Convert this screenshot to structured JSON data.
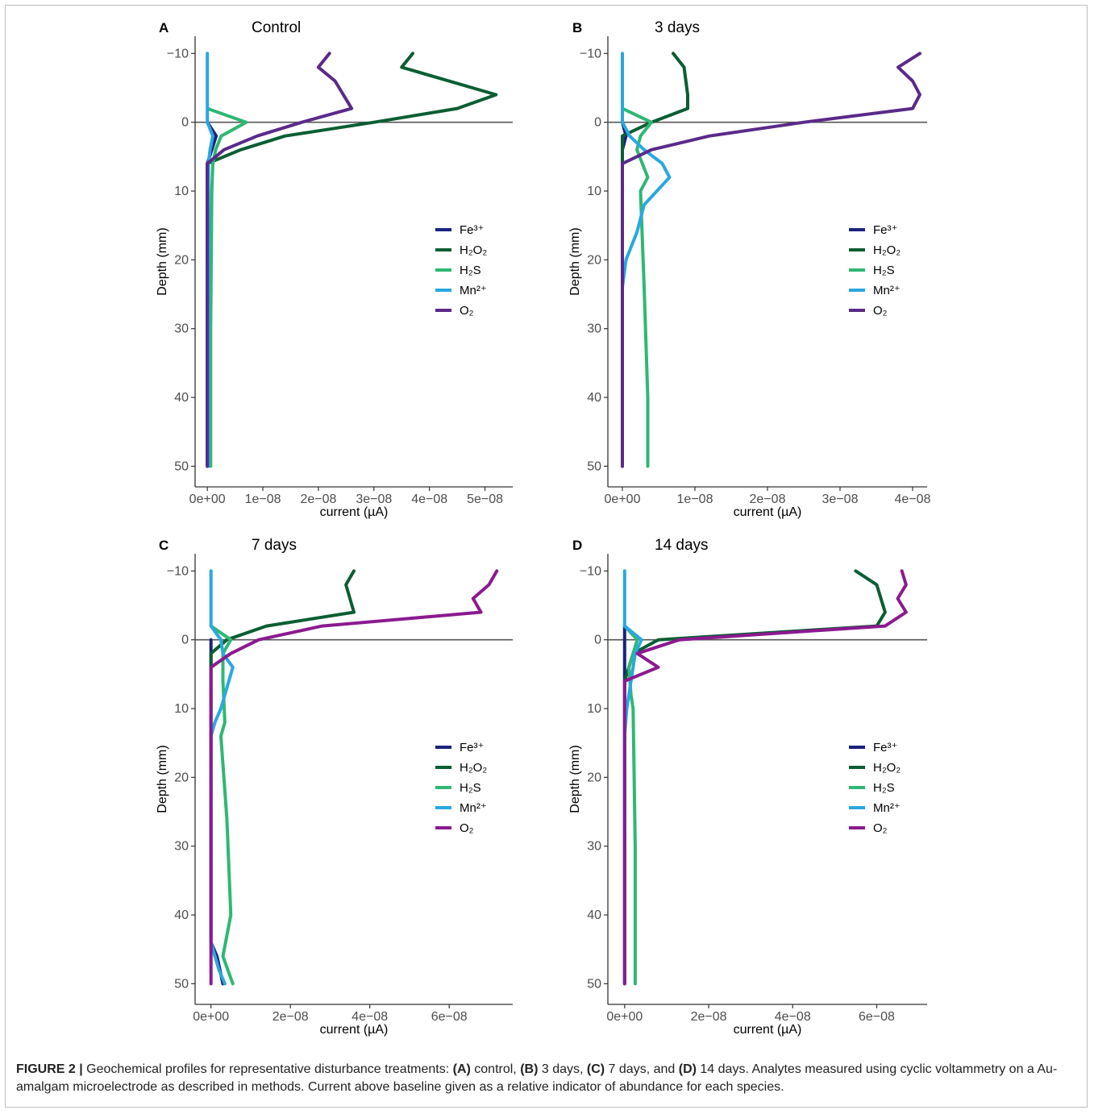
{
  "chart_data": [
    {
      "type": "line",
      "panel": "A",
      "title": "Control",
      "xlabel": "current (µA)",
      "ylabel": "Depth (mm)",
      "xlim": [
        -2.2e-09,
        5.5e-08
      ],
      "ylim": [
        -12.5,
        53
      ],
      "y_reversed": true,
      "xticks": [
        0,
        1e-08,
        2e-08,
        3e-08,
        4e-08,
        5e-08
      ],
      "xtick_labels": [
        "0e+00",
        "1e−08",
        "2e−08",
        "3e−08",
        "4e−08",
        "5e−08"
      ],
      "yticks": [
        -10,
        0,
        10,
        20,
        30,
        40,
        50
      ],
      "ytick_labels": [
        "−10",
        "0",
        "10",
        "20",
        "30",
        "40",
        "50"
      ],
      "reference_line": 0,
      "legend": "right",
      "series": [
        {
          "name": "Fe³⁺",
          "color": "#1a237e",
          "points": [
            [
              0,
              0
            ],
            [
              1.6e-09,
              2
            ],
            [
              0,
              6
            ],
            [
              0,
              50
            ]
          ]
        },
        {
          "name": "H₂O₂",
          "color": "#0b5e33",
          "points": [
            [
              3.7e-08,
              -10
            ],
            [
              3.5e-08,
              -8
            ],
            [
              5.2e-08,
              -4
            ],
            [
              4.5e-08,
              -2
            ],
            [
              3e-08,
              0
            ],
            [
              1.4e-08,
              2
            ],
            [
              6e-09,
              4
            ],
            [
              0,
              6
            ],
            [
              0,
              50
            ]
          ]
        },
        {
          "name": "H₂S",
          "color": "#2eb873",
          "points": [
            [
              0,
              -2
            ],
            [
              7e-09,
              0
            ],
            [
              2.5e-09,
              2
            ],
            [
              1.5e-09,
              4
            ],
            [
              1e-09,
              6
            ],
            [
              8e-10,
              10
            ],
            [
              6e-10,
              30
            ],
            [
              6e-10,
              50
            ]
          ]
        },
        {
          "name": "Mn²⁺",
          "color": "#29a8e0",
          "points": [
            [
              0,
              -10
            ],
            [
              0,
              -2
            ],
            [
              0,
              0
            ],
            [
              1e-09,
              2
            ],
            [
              5e-10,
              4
            ],
            [
              2e-10,
              6
            ],
            [
              2e-10,
              50
            ]
          ]
        },
        {
          "name": "O₂",
          "color": "#5a2a8a",
          "points": [
            [
              2.2e-08,
              -10
            ],
            [
              2e-08,
              -8
            ],
            [
              2.3e-08,
              -6
            ],
            [
              2.6e-08,
              -2
            ],
            [
              1.7e-08,
              0
            ],
            [
              9e-09,
              2
            ],
            [
              3e-09,
              4
            ],
            [
              0,
              6
            ],
            [
              0,
              50
            ]
          ]
        }
      ]
    },
    {
      "type": "line",
      "panel": "B",
      "title": "3 days",
      "xlabel": "current (µA)",
      "ylabel": "Depth (mm)",
      "xlim": [
        -2e-09,
        4.2e-08
      ],
      "ylim": [
        -12.5,
        53
      ],
      "y_reversed": true,
      "xticks": [
        0,
        1e-08,
        2e-08,
        3e-08,
        4e-08
      ],
      "xtick_labels": [
        "0e+00",
        "1e−08",
        "2e−08",
        "3e−08",
        "4e−08"
      ],
      "yticks": [
        -10,
        0,
        10,
        20,
        30,
        40,
        50
      ],
      "ytick_labels": [
        "−10",
        "0",
        "10",
        "20",
        "30",
        "40",
        "50"
      ],
      "reference_line": 0,
      "legend": "right",
      "series": [
        {
          "name": "Fe³⁺",
          "color": "#1a237e",
          "points": [
            [
              0,
              0
            ],
            [
              5e-10,
              2
            ],
            [
              0,
              4
            ],
            [
              0,
              50
            ]
          ]
        },
        {
          "name": "H₂O₂",
          "color": "#0b5e33",
          "points": [
            [
              7e-09,
              -10
            ],
            [
              8.5e-09,
              -8
            ],
            [
              9e-09,
              -4
            ],
            [
              9e-09,
              -2
            ],
            [
              4e-09,
              0
            ],
            [
              0,
              2
            ],
            [
              0,
              4
            ],
            [
              0,
              50
            ]
          ]
        },
        {
          "name": "H₂S",
          "color": "#2eb873",
          "points": [
            [
              0,
              -2
            ],
            [
              4e-09,
              0
            ],
            [
              2.5e-09,
              2
            ],
            [
              2e-09,
              4
            ],
            [
              3.5e-09,
              8
            ],
            [
              2.5e-09,
              10
            ],
            [
              3e-09,
              24
            ],
            [
              3.5e-09,
              40
            ],
            [
              3.5e-09,
              50
            ]
          ]
        },
        {
          "name": "Mn²⁺",
          "color": "#29a8e0",
          "points": [
            [
              0,
              -10
            ],
            [
              0,
              -2
            ],
            [
              0,
              0
            ],
            [
              1e-09,
              2
            ],
            [
              3e-09,
              4
            ],
            [
              5.5e-09,
              6
            ],
            [
              6.5e-09,
              8
            ],
            [
              3e-09,
              12
            ],
            [
              2e-09,
              16
            ],
            [
              5e-10,
              20
            ],
            [
              0,
              24
            ],
            [
              0,
              50
            ]
          ]
        },
        {
          "name": "O₂",
          "color": "#5a2a8a",
          "points": [
            [
              4.1e-08,
              -10
            ],
            [
              3.8e-08,
              -8
            ],
            [
              4e-08,
              -6
            ],
            [
              4.1e-08,
              -4
            ],
            [
              4e-08,
              -2
            ],
            [
              2.5e-08,
              0
            ],
            [
              1.2e-08,
              2
            ],
            [
              4e-09,
              4
            ],
            [
              0,
              6
            ],
            [
              0,
              50
            ]
          ]
        }
      ]
    },
    {
      "type": "line",
      "panel": "C",
      "title": "7 days",
      "xlabel": "current (µA)",
      "ylabel": "Depth (mm)",
      "xlim": [
        -4e-09,
        7.6e-08
      ],
      "ylim": [
        -12.5,
        53
      ],
      "y_reversed": true,
      "xticks": [
        0,
        2e-08,
        4e-08,
        6e-08
      ],
      "xtick_labels": [
        "0e+00",
        "2e−08",
        "4e−08",
        "6e−08"
      ],
      "yticks": [
        -10,
        0,
        10,
        20,
        30,
        40,
        50
      ],
      "ytick_labels": [
        "−10",
        "0",
        "10",
        "20",
        "30",
        "40",
        "50"
      ],
      "reference_line": 0,
      "legend": "right",
      "series": [
        {
          "name": "Fe³⁺",
          "color": "#1a237e",
          "points": [
            [
              0,
              0
            ],
            [
              0,
              44
            ],
            [
              1.5e-09,
              46
            ],
            [
              3e-09,
              50
            ]
          ]
        },
        {
          "name": "H₂O₂",
          "color": "#0b5e33",
          "points": [
            [
              3.6e-08,
              -10
            ],
            [
              3.4e-08,
              -8
            ],
            [
              3.6e-08,
              -4
            ],
            [
              1.4e-08,
              -2
            ],
            [
              4e-09,
              0
            ],
            [
              0,
              2
            ],
            [
              0,
              4
            ]
          ]
        },
        {
          "name": "H₂S",
          "color": "#2eb873",
          "points": [
            [
              0,
              -2
            ],
            [
              5e-09,
              0
            ],
            [
              3e-09,
              2
            ],
            [
              3e-09,
              6
            ],
            [
              3.5e-09,
              12
            ],
            [
              2.5e-09,
              14
            ],
            [
              4e-09,
              26
            ],
            [
              5e-09,
              40
            ],
            [
              3e-09,
              46
            ],
            [
              5.5e-09,
              50
            ]
          ]
        },
        {
          "name": "Mn²⁺",
          "color": "#29a8e0",
          "points": [
            [
              0,
              -10
            ],
            [
              0,
              -2
            ],
            [
              2.5e-09,
              0
            ],
            [
              3e-09,
              2
            ],
            [
              5.5e-09,
              4
            ],
            [
              2.5e-09,
              10
            ],
            [
              1e-09,
              12
            ],
            [
              0,
              14
            ],
            [
              0,
              44
            ],
            [
              2e-09,
              48
            ],
            [
              3.5e-09,
              50
            ]
          ]
        },
        {
          "name": "O₂",
          "color": "#8b1a8f",
          "points": [
            [
              7.2e-08,
              -10
            ],
            [
              7e-08,
              -8
            ],
            [
              6.6e-08,
              -6
            ],
            [
              6.8e-08,
              -4
            ],
            [
              2.8e-08,
              -2
            ],
            [
              1.2e-08,
              0
            ],
            [
              5e-09,
              2
            ],
            [
              0,
              4
            ],
            [
              0,
              50
            ]
          ]
        }
      ]
    },
    {
      "type": "line",
      "panel": "D",
      "title": "14 days",
      "xlabel": "current (µA)",
      "ylabel": "Depth (mm)",
      "xlim": [
        -4e-09,
        7.2e-08
      ],
      "ylim": [
        -12.5,
        53
      ],
      "y_reversed": true,
      "xticks": [
        0,
        2e-08,
        4e-08,
        6e-08
      ],
      "xtick_labels": [
        "0e+00",
        "2e−08",
        "4e−08",
        "6e−08"
      ],
      "yticks": [
        -10,
        0,
        10,
        20,
        30,
        40,
        50
      ],
      "ytick_labels": [
        "−10",
        "0",
        "10",
        "20",
        "30",
        "40",
        "50"
      ],
      "reference_line": 0,
      "legend": "right",
      "series": [
        {
          "name": "Fe³⁺",
          "color": "#1a237e",
          "points": [
            [
              0,
              -2
            ],
            [
              0,
              50
            ]
          ]
        },
        {
          "name": "H₂O₂",
          "color": "#0b5e33",
          "points": [
            [
              5.5e-08,
              -10
            ],
            [
              6e-08,
              -8
            ],
            [
              6.1e-08,
              -6
            ],
            [
              6.2e-08,
              -4
            ],
            [
              6e-08,
              -2
            ],
            [
              8e-09,
              0
            ],
            [
              2e-09,
              2
            ],
            [
              1e-09,
              4
            ],
            [
              0,
              6
            ]
          ]
        },
        {
          "name": "H₂S",
          "color": "#2eb873",
          "points": [
            [
              0,
              -2
            ],
            [
              3e-09,
              0
            ],
            [
              2e-09,
              2
            ],
            [
              1e-09,
              4
            ],
            [
              1.5e-09,
              8
            ],
            [
              2e-09,
              10
            ],
            [
              2.5e-09,
              30
            ],
            [
              2.5e-09,
              50
            ]
          ]
        },
        {
          "name": "Mn²⁺",
          "color": "#29a8e0",
          "points": [
            [
              0,
              -10
            ],
            [
              0,
              -2
            ],
            [
              4e-09,
              0
            ],
            [
              2.5e-09,
              2
            ],
            [
              2e-09,
              4
            ],
            [
              1e-09,
              8
            ],
            [
              5e-10,
              10
            ],
            [
              0,
              14
            ],
            [
              0,
              50
            ]
          ]
        },
        {
          "name": "O₂",
          "color": "#8b1a8f",
          "points": [
            [
              6.6e-08,
              -10
            ],
            [
              6.7e-08,
              -8
            ],
            [
              6.5e-08,
              -6
            ],
            [
              6.7e-08,
              -4
            ],
            [
              6.2e-08,
              -2
            ],
            [
              1.3e-08,
              0
            ],
            [
              3e-09,
              2
            ],
            [
              8e-09,
              4
            ],
            [
              0,
              6
            ],
            [
              0,
              50
            ]
          ]
        }
      ]
    }
  ],
  "caption": {
    "label": "FIGURE 2 |",
    "intro": " Geochemical profiles for representative disturbance treatments: ",
    "a": "(A)",
    "a_text": " control, ",
    "b": "(B)",
    "b_text": " 3 days, ",
    "c": "(C)",
    "c_text": " 7 days, and ",
    "d": "(D)",
    "d_text": " 14 days. Analytes measured using cyclic voltammetry on a Au-amalgam microelectrode as described in methods. Current above baseline given as a relative indicator of abundance for each species."
  }
}
